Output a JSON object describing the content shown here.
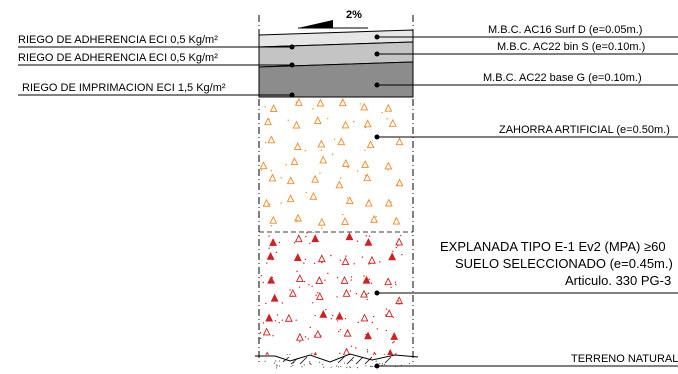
{
  "slope": {
    "label": "2%"
  },
  "left_labels": [
    {
      "text": "RIEGO DE ADHERENCIA ECI 0,5 Kg/m²"
    },
    {
      "text": "RIEGO DE ADHERENCIA ECI 0,5 Kg/m²"
    },
    {
      "text": "RIEGO DE IMPRIMACION ECI 1,5 Kg/m²"
    }
  ],
  "layers": {
    "surf": {
      "label": "M.B.C. AC16 Surf D (e=0.05m.)",
      "color": "#e6e6e6"
    },
    "bin": {
      "label": "M.B.C. AC22 bin S (e=0.10m.)",
      "color": "#c4c4c4"
    },
    "base": {
      "label": "M.B.C. AC22 base G (e=0.10m.)",
      "color": "#8c8c8c"
    },
    "zahorra": {
      "label": "ZAHORRA ARTIFICIAL (e=0.50m.)",
      "marker_color": "#f08a24"
    },
    "explanada": {
      "lines": [
        "EXPLANADA TIPO E-1 Ev2  (MPA) ≥60",
        "SUELO SELECCIONADO (e=0.45m.)",
        "Articulo. 330 PG-3"
      ],
      "marker_color": "#d21f1f"
    },
    "terreno": {
      "label": "TERRENO NATURAL"
    }
  }
}
